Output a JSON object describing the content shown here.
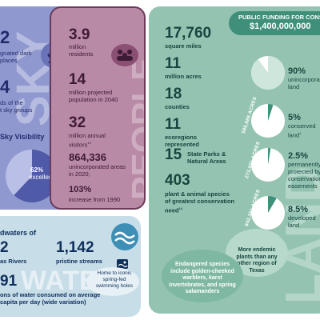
{
  "colors": {
    "sky": "#8f98cf",
    "people": "#b98aa6",
    "land": "#94c4b1",
    "water": "#c7dde8",
    "dark_navy": "#232b6d",
    "plum": "#3d1a35",
    "teal": "#16463f"
  },
  "sky": {
    "stat1_num": "2",
    "stat1_label_a": "gnated dark",
    "stat1_label_b": "places",
    "stat2_num": "4",
    "stat2_label_a": "ds of the",
    "stat2_label_b": "t sky groups",
    "visibility_label": "Sky Visibility",
    "pie_percent": "62%",
    "pie_word": "excellent",
    "pie_fraction": 0.62,
    "icon": "telescope-icon",
    "watermark": "SKY"
  },
  "people": {
    "stat1_num": "3.9",
    "stat1_label": "million residents",
    "stat2_num": "14",
    "stat2_label": "million projected population in 2040",
    "stat3_num": "32",
    "stat3_label": "million annual visitors",
    "stat3_sup": "12",
    "stat4_num": "864,336",
    "stat4_label": "unincorporated areas in 2020;",
    "stat5_num": "103%",
    "stat5_label": "increase from 1990",
    "icon": "people-group-icon",
    "watermark": "PEOPLE"
  },
  "land": {
    "funding_title": "PUBLIC FUNDING FOR CONSERVA",
    "funding_amount": "$1,400,000,000",
    "stat1_num": "17,760",
    "stat1_label": "square miles",
    "stat2_num": "11",
    "stat2_label": "million acres",
    "stat3_num": "18",
    "stat3_label": "counties",
    "stat4_num": "11",
    "stat4_label": "ecoregions represented",
    "stat5_num": "15",
    "stat5_label": "State Parks & Natural Areas",
    "stat6_num": "403",
    "stat6_label": "plant & animal species of greatest conservation need",
    "stat6_sup": "14",
    "pies": [
      {
        "percent": "90%",
        "label": "unincorporated land",
        "fraction": 0.9
      },
      {
        "percent": "5%",
        "label": "conserved land",
        "sup": "1",
        "fraction": 0.05
      },
      {
        "percent": "2.5%",
        "label": "permanently protected by conservation easements",
        "fraction": 0.025
      },
      {
        "percent": "8.5%",
        "label": "developed land",
        "fraction": 0.085
      }
    ],
    "acre_labels": [
      "585,889 ACRES",
      "273,001 ACRES",
      "942,361 ACRES"
    ],
    "endemic_note": "More endemic plants than any other region of Texas",
    "species_note": "Endangered species include golden-cheeked warblers, karst invertebrates, and spring salamanders",
    "icon": "leaf-icon",
    "watermark": "LAND"
  },
  "water": {
    "headline": "dwaters of",
    "stat1_num": "2",
    "stat1_label": "as Rivers",
    "stat2_num": "1,142",
    "stat2_label": "pristine streams",
    "stat3_num": "91",
    "stat3_label": "ons of water consumed on average capita per day (wide variation)",
    "swim_note": "Home to iconic spring-fed swimming holes",
    "icon": "wave-icon",
    "swimmer_icon": "swimmer-icon",
    "watermark": "WATER"
  }
}
